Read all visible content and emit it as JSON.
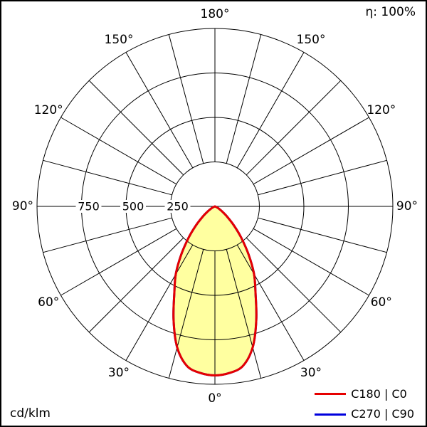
{
  "page": {
    "efficiency": "η: 100%",
    "units": "cd/klm"
  },
  "legend": {
    "position": "bottom-right",
    "items": [
      {
        "label": "C180 | C0",
        "color": "#e60000"
      },
      {
        "label": "C270 | C90",
        "color": "#0000dd"
      }
    ]
  },
  "chart_data": {
    "type": "line",
    "variant": "polar-photometric-intensity-distribution",
    "projection": "polar",
    "angle_zero_position": "bottom",
    "spoke_step_deg": 15,
    "angle_labels_deg": [
      0,
      30,
      60,
      90,
      120,
      150,
      180
    ],
    "radial_ticks": [
      250,
      500,
      750
    ],
    "radial_max": 1000,
    "radial_units": "cd/klm",
    "efficiency": "η: 100%",
    "grid": true,
    "grid_color": "#000000",
    "fill_color": "#ffffa0",
    "legend_position": "bottom-right",
    "series": [
      {
        "name": "C180 | C0",
        "color": "#e60000",
        "mirrored": true,
        "gamma_deg": [
          0,
          5,
          10,
          15,
          20,
          25,
          30,
          35,
          40,
          45,
          50,
          55,
          60,
          65,
          70,
          75,
          80,
          85,
          90
        ],
        "values": [
          950,
          940,
          910,
          820,
          680,
          540,
          440,
          330,
          230,
          150,
          90,
          50,
          25,
          10,
          4,
          1,
          0,
          0,
          0
        ]
      },
      {
        "name": "C270 | C90",
        "color": "#0000dd",
        "mirrored": true,
        "note": "coincides with C180 | C0 curve (drawn beneath the red curve)",
        "gamma_deg": [
          0,
          5,
          10,
          15,
          20,
          25,
          30,
          35,
          40,
          45,
          50,
          55,
          60,
          65,
          70,
          75,
          80,
          85,
          90
        ],
        "values": [
          950,
          940,
          910,
          820,
          680,
          540,
          440,
          330,
          230,
          150,
          90,
          50,
          25,
          10,
          4,
          1,
          0,
          0,
          0
        ]
      }
    ]
  }
}
